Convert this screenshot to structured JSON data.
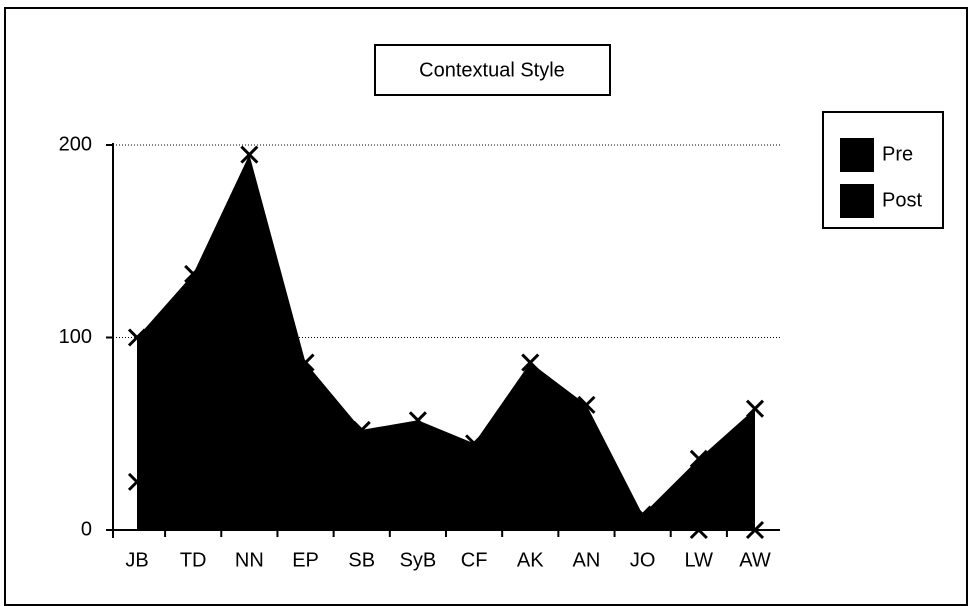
{
  "chart_data": {
    "type": "area",
    "title": "Contextual Style",
    "categories": [
      "JB",
      "TD",
      "NN",
      "EP",
      "SB",
      "SyB",
      "CF",
      "AK",
      "AN",
      "JO",
      "LW",
      "AW"
    ],
    "series": [
      {
        "name": "Pre",
        "color": "#000000",
        "values": [
          100,
          133,
          195,
          87,
          52,
          57,
          45,
          87,
          65,
          8,
          37,
          63
        ]
      },
      {
        "name": "Post",
        "color": "#000000",
        "values": [
          25,
          30,
          40,
          20,
          15,
          10,
          12,
          20,
          20,
          5,
          0,
          0
        ]
      }
    ],
    "ylim": [
      0,
      200
    ],
    "yticks": [
      0,
      100,
      200
    ],
    "grid": true,
    "legend": "right"
  }
}
